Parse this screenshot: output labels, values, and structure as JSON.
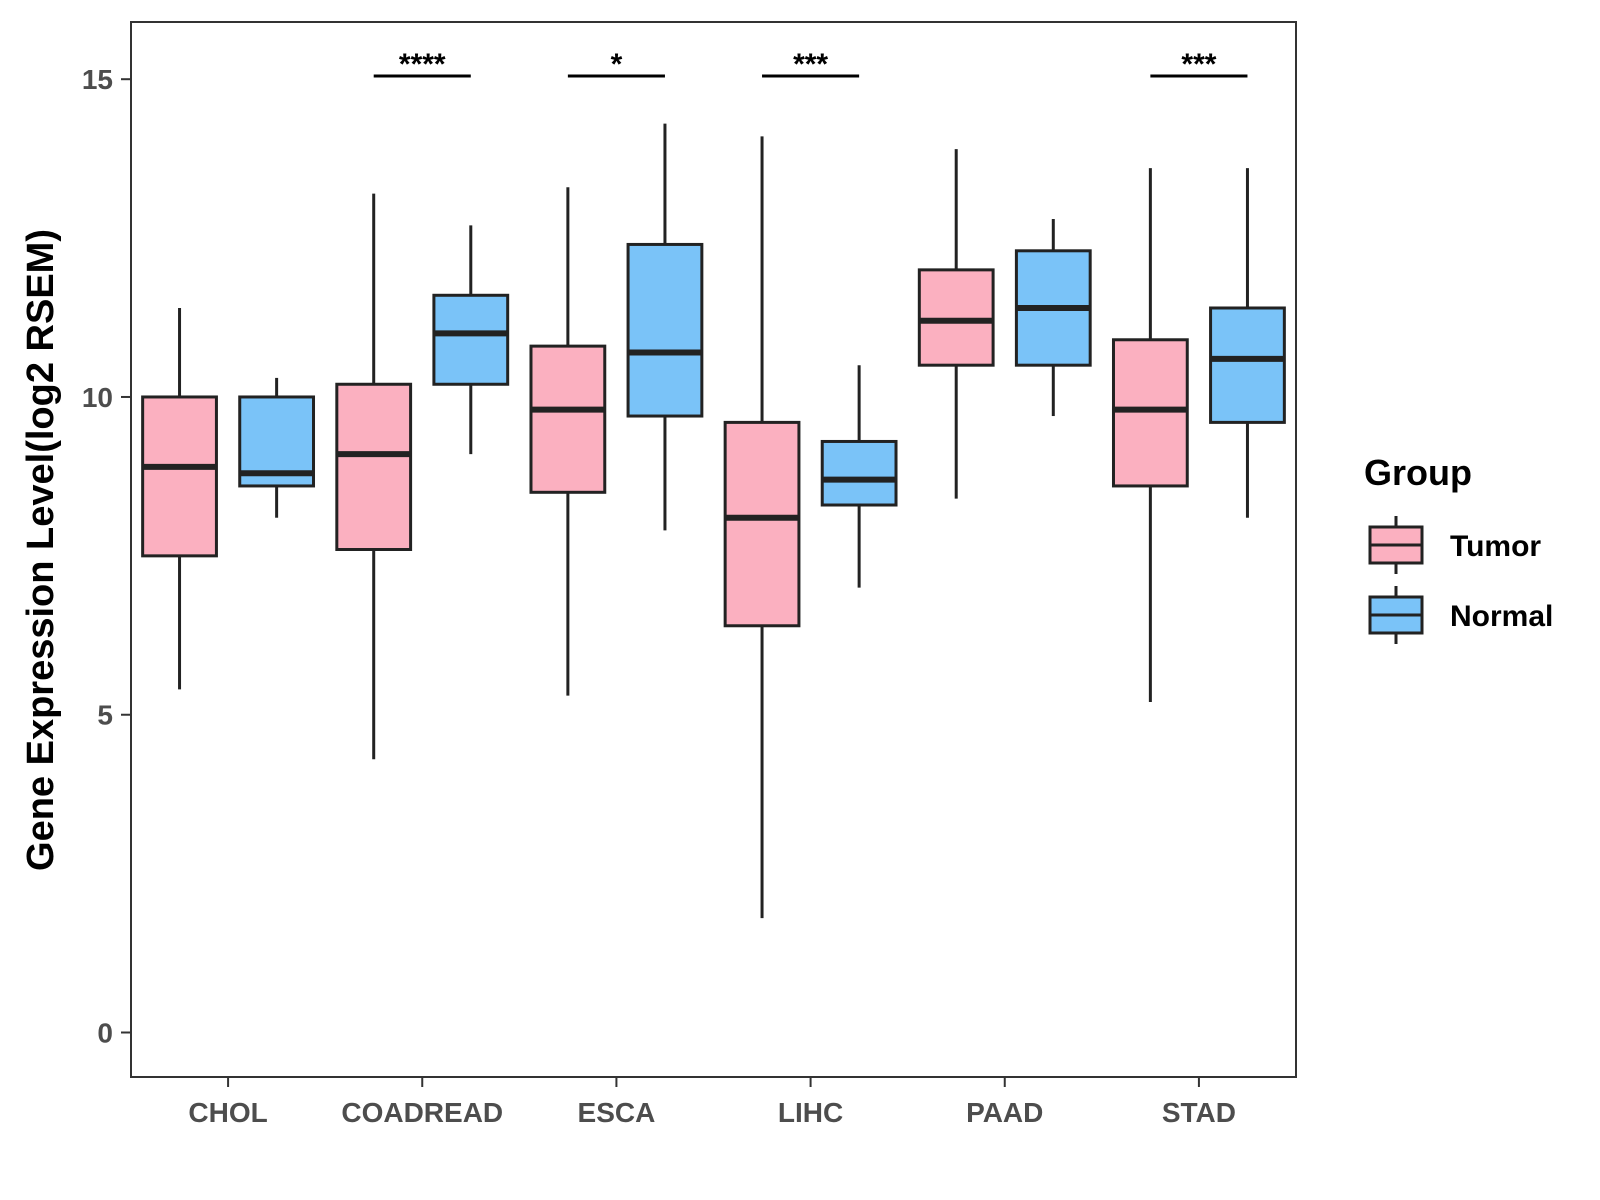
{
  "chart_data": {
    "type": "boxplot",
    "title": "",
    "xlabel": "",
    "ylabel": "Gene Expression Level(log2 RSEM)",
    "ylim": [
      -0.7,
      15.9
    ],
    "yticks": [
      0,
      5,
      10,
      15
    ],
    "grid": false,
    "categories": [
      "CHOL",
      "COADREAD",
      "ESCA",
      "LIHC",
      "PAAD",
      "STAD"
    ],
    "series": [
      {
        "name": "Tumor",
        "color": "#FBB0C0",
        "boxes": [
          {
            "min": 5.4,
            "q1": 7.5,
            "median": 8.9,
            "q3": 10.0,
            "max": 11.4
          },
          {
            "min": 4.3,
            "q1": 7.6,
            "median": 9.1,
            "q3": 10.2,
            "max": 13.2
          },
          {
            "min": 5.3,
            "q1": 8.5,
            "median": 9.8,
            "q3": 10.8,
            "max": 13.3
          },
          {
            "min": 1.8,
            "q1": 6.4,
            "median": 8.1,
            "q3": 9.6,
            "max": 14.1
          },
          {
            "min": 8.4,
            "q1": 10.5,
            "median": 11.2,
            "q3": 12.0,
            "max": 13.9
          },
          {
            "min": 5.2,
            "q1": 8.6,
            "median": 9.8,
            "q3": 10.9,
            "max": 13.6
          }
        ]
      },
      {
        "name": "Normal",
        "color": "#7AC3F8",
        "boxes": [
          {
            "min": 8.1,
            "q1": 8.6,
            "median": 8.8,
            "q3": 10.0,
            "max": 10.3
          },
          {
            "min": 9.1,
            "q1": 10.2,
            "median": 11.0,
            "q3": 11.6,
            "max": 12.7
          },
          {
            "min": 7.9,
            "q1": 9.7,
            "median": 10.7,
            "q3": 12.4,
            "max": 14.3
          },
          {
            "min": 7.0,
            "q1": 8.3,
            "median": 8.7,
            "q3": 9.3,
            "max": 10.5
          },
          {
            "min": 9.7,
            "q1": 10.5,
            "median": 11.4,
            "q3": 12.3,
            "max": 12.8
          },
          {
            "min": 8.1,
            "q1": 9.6,
            "median": 10.6,
            "q3": 11.4,
            "max": 13.6
          }
        ]
      }
    ],
    "significance": [
      {
        "category": "COADREAD",
        "label": "****"
      },
      {
        "category": "ESCA",
        "label": "*"
      },
      {
        "category": "LIHC",
        "label": "***"
      },
      {
        "category": "STAD",
        "label": "***"
      }
    ],
    "significance_y": 15.05,
    "legend": {
      "title": "Group",
      "placement": "right"
    }
  }
}
